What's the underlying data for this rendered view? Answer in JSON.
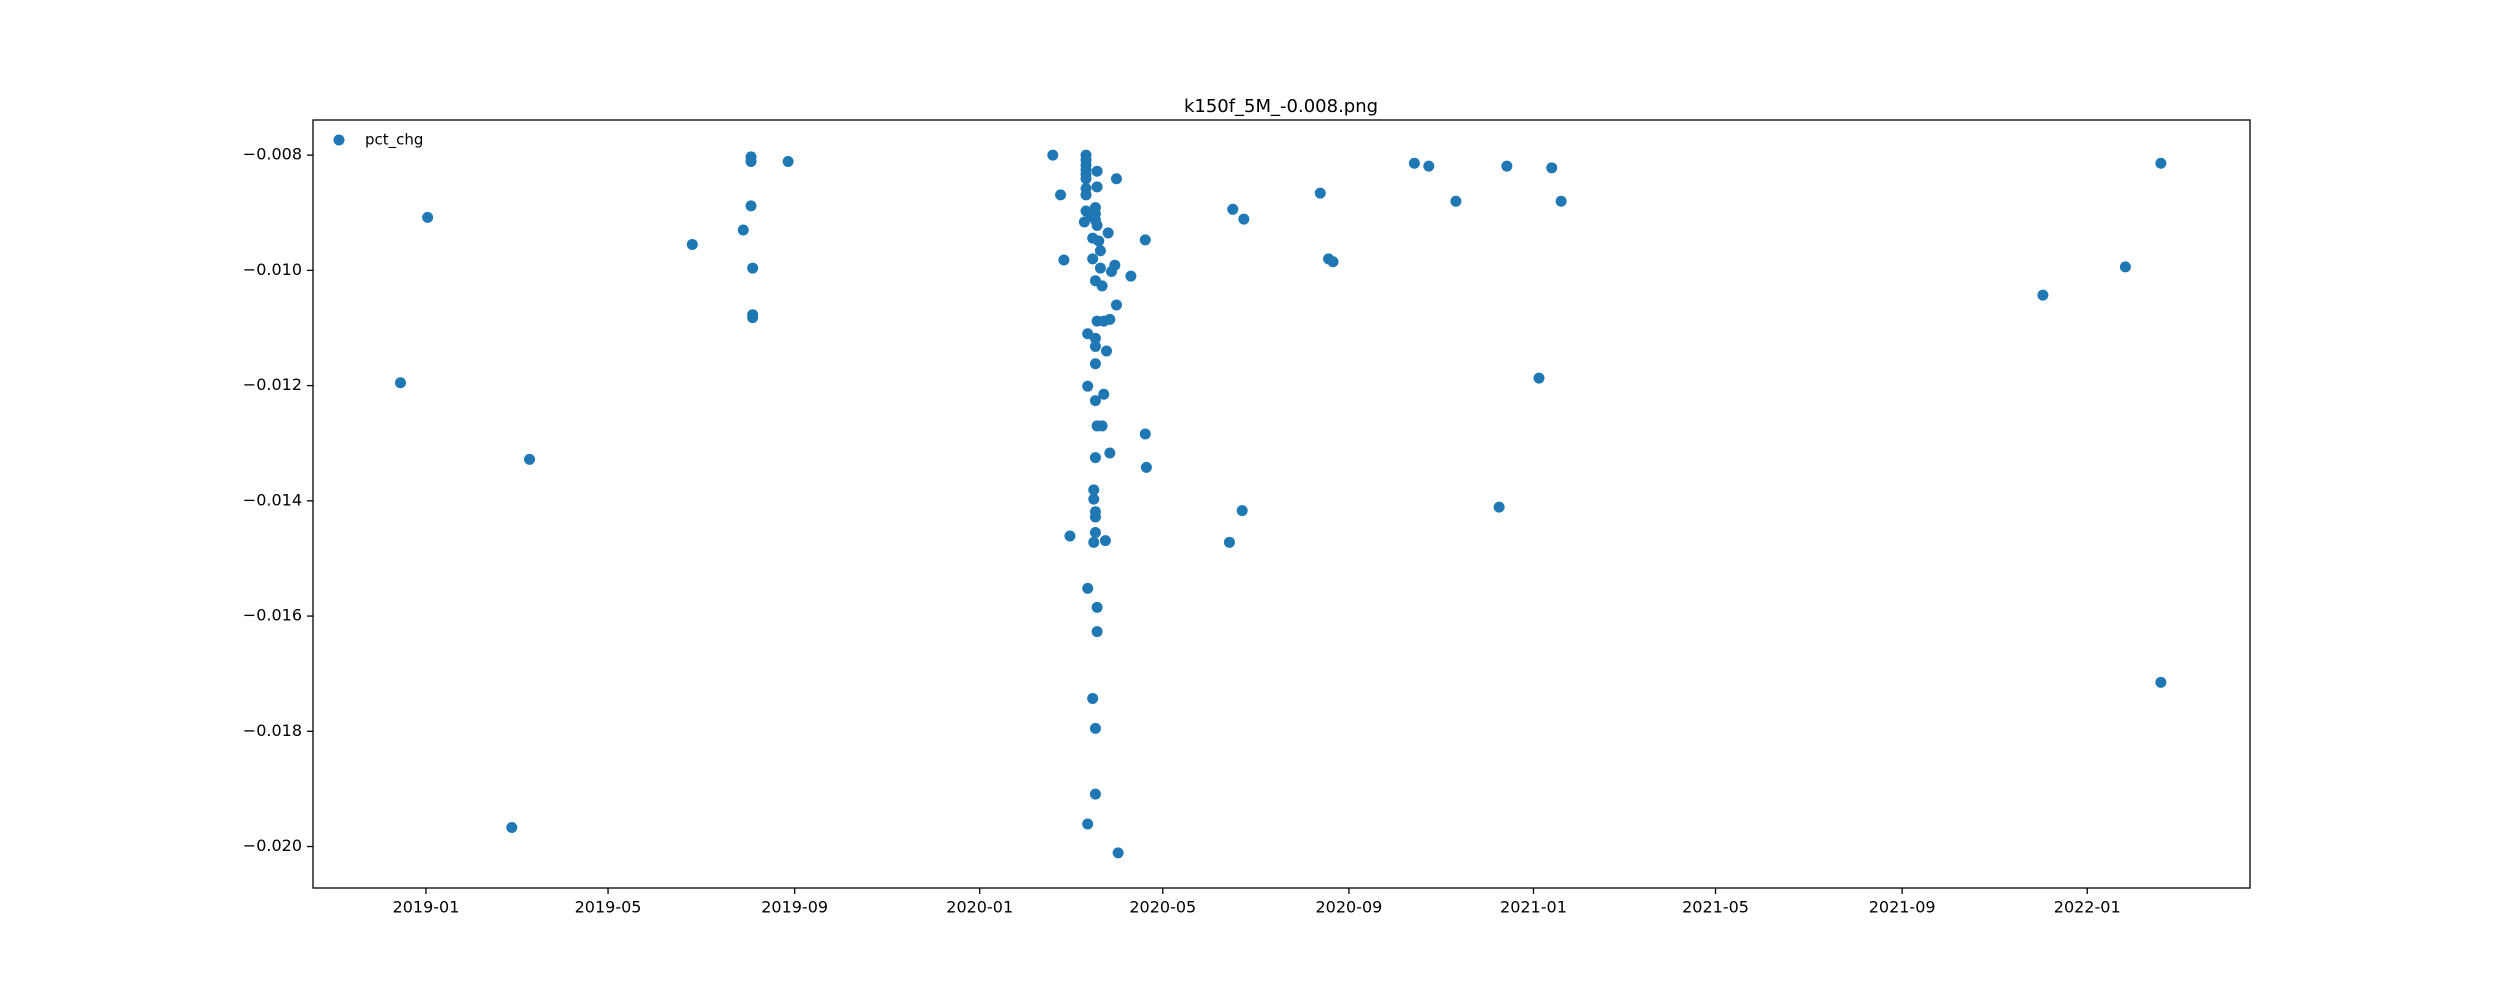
{
  "chart_data": {
    "type": "scatter",
    "title": "k150f_5M_-0.008.png",
    "x": [
      2018.954,
      2019.003,
      2019.155,
      2019.187,
      2019.481,
      2019.573,
      2019.587,
      2019.587,
      2019.587,
      2019.59,
      2019.59,
      2019.59,
      2019.654,
      2020.132,
      2020.146,
      2020.152,
      2020.163,
      2020.192,
      2020.192,
      2020.192,
      2020.192,
      2020.192,
      2020.192,
      2020.192,
      2020.192,
      2020.192,
      2020.189,
      2020.195,
      2020.195,
      2020.195,
      2020.195,
      2020.201,
      2020.204,
      2020.204,
      2020.204,
      2020.206,
      2020.206,
      2020.206,
      2020.209,
      2020.209,
      2020.209,
      2020.209,
      2020.209,
      2020.209,
      2020.209,
      2020.209,
      2020.209,
      2020.209,
      2020.209,
      2020.209,
      2020.212,
      2020.212,
      2020.212,
      2020.209,
      2020.209,
      2020.212,
      2020.212,
      2020.212,
      2020.212,
      2020.215,
      2020.218,
      2020.218,
      2020.221,
      2020.221,
      2020.224,
      2020.224,
      2020.227,
      2020.229,
      2020.232,
      2020.235,
      2020.235,
      2020.238,
      2020.244,
      2020.247,
      2020.247,
      2020.25,
      2020.273,
      2020.299,
      2020.299,
      2020.301,
      2020.451,
      2020.457,
      2020.474,
      2020.477,
      2020.615,
      2020.63,
      2020.638,
      2020.785,
      2020.811,
      2020.86,
      2020.938,
      2020.952,
      2021.01,
      2021.033,
      2021.05,
      2021.92,
      2022.069,
      2022.133,
      2022.133
    ],
    "series": [
      {
        "name": "pct_chg",
        "color": "#1f77b4",
        "values": [
          -0.01195,
          -0.00908,
          -0.01967,
          -0.01328,
          -0.00955,
          -0.0093,
          -0.00803,
          -0.00811,
          -0.00888,
          -0.00996,
          -0.01077,
          -0.01082,
          -0.00811,
          -0.008,
          -0.00869,
          -0.00982,
          -0.01461,
          -0.008,
          -0.00808,
          -0.00817,
          -0.00825,
          -0.00833,
          -0.00841,
          -0.00858,
          -0.00869,
          -0.00897,
          -0.00916,
          -0.0111,
          -0.01201,
          -0.01552,
          -0.01961,
          -0.00905,
          -0.00944,
          -0.0098,
          -0.01743,
          -0.01397,
          -0.01381,
          -0.01472,
          -0.00891,
          -0.00902,
          -0.00913,
          -0.01018,
          -0.01118,
          -0.01132,
          -0.01162,
          -0.01226,
          -0.01325,
          -0.01419,
          -0.01428,
          -0.01455,
          -0.00828,
          -0.00855,
          -0.00922,
          -0.01795,
          -0.01909,
          -0.01088,
          -0.0127,
          -0.01585,
          -0.01627,
          -0.00949,
          -0.00966,
          -0.00996,
          -0.01027,
          -0.0127,
          -0.01088,
          -0.01215,
          -0.01469,
          -0.0114,
          -0.00935,
          -0.01085,
          -0.01317,
          -0.01002,
          -0.00991,
          -0.00841,
          -0.0106,
          -0.02011,
          -0.0101,
          -0.00947,
          -0.01284,
          -0.01342,
          -0.01472,
          -0.00894,
          -0.01417,
          -0.00911,
          -0.00866,
          -0.0098,
          -0.00985,
          -0.00814,
          -0.00819,
          -0.0088,
          -0.01411,
          -0.00819,
          -0.01187,
          -0.00822,
          -0.0088,
          -0.01043,
          -0.00994,
          -0.00814,
          -0.01715
        ]
      }
    ],
    "xlim": [
      2018.796,
      2022.294
    ],
    "xticks": [
      {
        "value": 2019.0,
        "label": "2019-01"
      },
      {
        "value": 2019.3288,
        "label": "2019-05"
      },
      {
        "value": 2019.6658,
        "label": "2019-09"
      },
      {
        "value": 2020.0,
        "label": "2020-01"
      },
      {
        "value": 2020.3306,
        "label": "2020-05"
      },
      {
        "value": 2020.6667,
        "label": "2020-09"
      },
      {
        "value": 2021.0,
        "label": "2021-01"
      },
      {
        "value": 2021.3288,
        "label": "2021-05"
      },
      {
        "value": 2021.6658,
        "label": "2021-09"
      },
      {
        "value": 2022.0,
        "label": "2022-01"
      }
    ],
    "ylim": [
      -0.02072,
      -0.00739
    ],
    "yticks": [
      {
        "value": -0.02,
        "label": "−0.020"
      },
      {
        "value": -0.018,
        "label": "−0.018"
      },
      {
        "value": -0.016,
        "label": "−0.016"
      },
      {
        "value": -0.014,
        "label": "−0.014"
      },
      {
        "value": -0.012,
        "label": "−0.012"
      },
      {
        "value": -0.01,
        "label": "−0.010"
      },
      {
        "value": -0.008,
        "label": "−0.008"
      }
    ],
    "legend": "upper left"
  }
}
